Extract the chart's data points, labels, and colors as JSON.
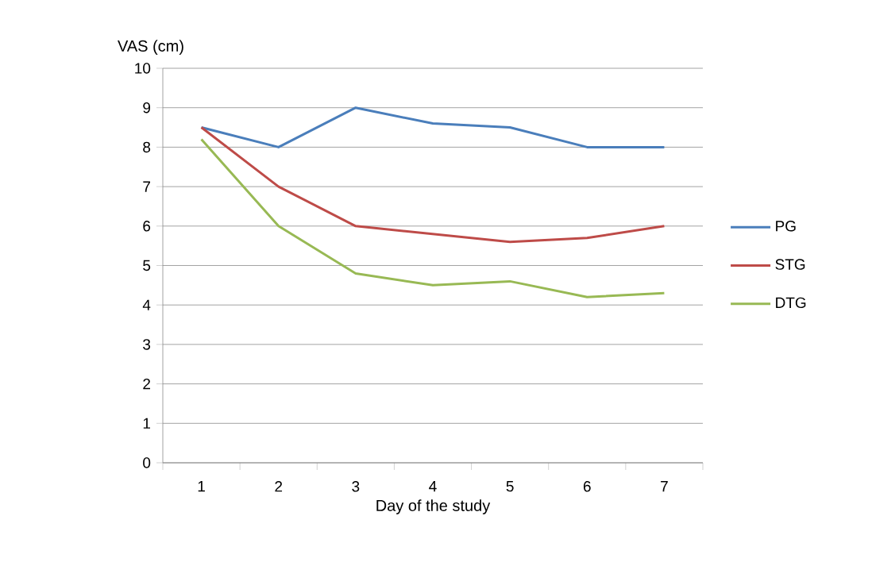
{
  "chart_data": {
    "type": "line",
    "xlabel": "Day of the study",
    "ylabel": "VAS (cm)",
    "categories": [
      "1",
      "2",
      "3",
      "4",
      "5",
      "6",
      "7"
    ],
    "series": [
      {
        "name": "PG",
        "color": "#4a7ebb",
        "values": [
          8.5,
          8,
          9,
          8.6,
          8.5,
          8,
          8
        ]
      },
      {
        "name": "STG",
        "color": "#be4b48",
        "values": [
          8.5,
          7,
          6,
          5.8,
          5.6,
          5.7,
          6
        ]
      },
      {
        "name": "DTG",
        "color": "#98b954",
        "values": [
          8.2,
          6,
          4.8,
          4.5,
          4.6,
          4.2,
          4.3
        ]
      }
    ],
    "ylim": [
      0,
      10
    ],
    "yticks": [
      0,
      1,
      2,
      3,
      4,
      5,
      6,
      7,
      8,
      9,
      10
    ],
    "grid": "y",
    "legend": "right"
  }
}
